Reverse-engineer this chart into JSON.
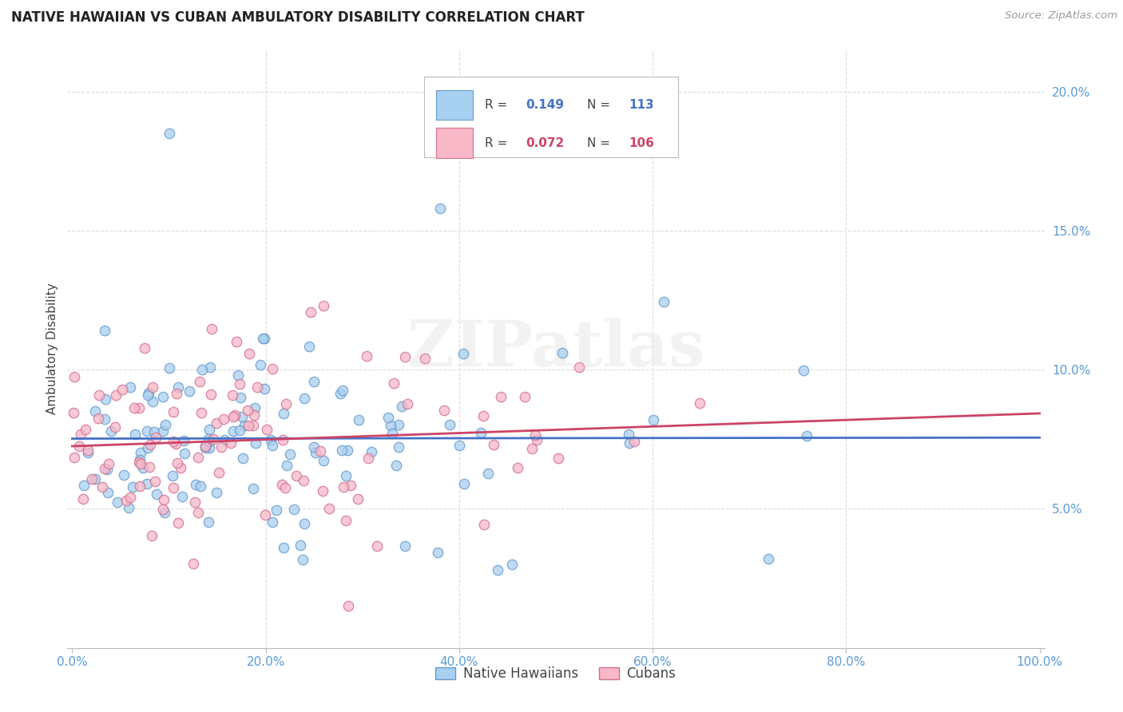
{
  "title": "NATIVE HAWAIIAN VS CUBAN AMBULATORY DISABILITY CORRELATION CHART",
  "source": "Source: ZipAtlas.com",
  "ylabel": "Ambulatory Disability",
  "watermark": "ZIPatlas",
  "R_hawaiian": 0.149,
  "N_hawaiian": 113,
  "R_cuban": 0.072,
  "N_cuban": 106,
  "color_hawaiian_face": "#A8D0F0",
  "color_hawaiian_edge": "#6699CC",
  "color_cuban_face": "#F8B8C8",
  "color_cuban_edge": "#D07090",
  "color_line_hawaiian": "#4472C4",
  "color_line_cuban": "#CC4466",
  "color_axis_labels": "#5B9BD5",
  "color_legend_R": "#555555",
  "color_legend_val_blue": "#4472C4",
  "color_legend_val_pink": "#CC4466",
  "color_grid": "#DDDDDD",
  "background_color": "#FFFFFF",
  "xlim": [
    -0.005,
    1.005
  ],
  "ylim": [
    0.0,
    0.215
  ],
  "xtick_positions": [
    0.0,
    0.2,
    0.4,
    0.6,
    0.8,
    1.0
  ],
  "xtick_labels": [
    "0.0%",
    "20.0%",
    "40.0%",
    "60.0%",
    "80.0%",
    "100.0%"
  ],
  "ytick_positions": [
    0.05,
    0.1,
    0.15,
    0.2
  ],
  "ytick_labels": [
    "5.0%",
    "10.0%",
    "15.0%",
    "20.0%"
  ]
}
